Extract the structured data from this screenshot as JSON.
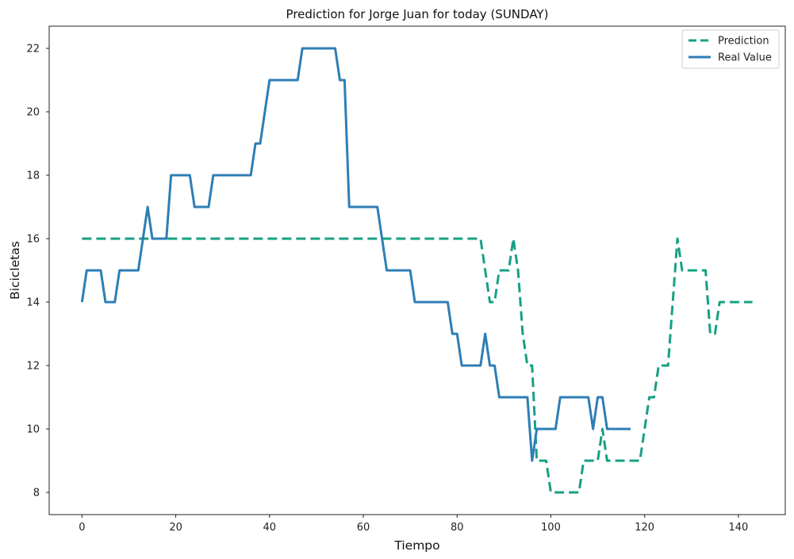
{
  "chart_data": {
    "type": "line",
    "title": "Prediction for Jorge Juan for today (SUNDAY)",
    "xlabel": "Tiempo",
    "ylabel": "Bicicletas",
    "xlim": [
      -7,
      150
    ],
    "ylim": [
      7.3,
      22.7
    ],
    "xticks": [
      0,
      20,
      40,
      60,
      80,
      100,
      120,
      140
    ],
    "yticks": [
      8,
      10,
      12,
      14,
      16,
      18,
      20,
      22
    ],
    "grid": false,
    "legend_position": "top-right",
    "series": [
      {
        "name": "Prediction",
        "color": "#16a085",
        "style": "dashed",
        "points": [
          [
            0,
            16
          ],
          [
            85,
            16
          ],
          [
            87,
            14
          ],
          [
            88,
            14
          ],
          [
            89,
            15
          ],
          [
            91,
            15
          ],
          [
            92,
            16
          ],
          [
            93,
            15
          ],
          [
            94,
            13
          ],
          [
            95,
            12
          ],
          [
            96,
            12
          ],
          [
            97,
            9
          ],
          [
            98,
            9
          ],
          [
            99,
            9
          ],
          [
            100,
            8
          ],
          [
            106,
            8
          ],
          [
            107,
            9
          ],
          [
            109,
            9
          ],
          [
            110,
            9
          ],
          [
            111,
            10
          ],
          [
            112,
            9
          ],
          [
            119,
            9
          ],
          [
            121,
            11
          ],
          [
            122,
            11
          ],
          [
            123,
            12
          ],
          [
            125,
            12
          ],
          [
            127,
            16
          ],
          [
            128,
            15
          ],
          [
            133,
            15
          ],
          [
            134,
            13
          ],
          [
            135,
            13
          ],
          [
            136,
            14
          ],
          [
            143,
            14
          ]
        ]
      },
      {
        "name": "Real Value",
        "color": "#2e7eb5",
        "style": "solid",
        "points": [
          [
            0,
            14
          ],
          [
            1,
            15
          ],
          [
            4,
            15
          ],
          [
            5,
            14
          ],
          [
            7,
            14
          ],
          [
            8,
            15
          ],
          [
            12,
            15
          ],
          [
            14,
            17
          ],
          [
            15,
            16
          ],
          [
            18,
            16
          ],
          [
            19,
            18
          ],
          [
            23,
            18
          ],
          [
            24,
            17
          ],
          [
            27,
            17
          ],
          [
            28,
            18
          ],
          [
            36,
            18
          ],
          [
            37,
            19
          ],
          [
            38,
            19
          ],
          [
            40,
            21
          ],
          [
            46,
            21
          ],
          [
            47,
            22
          ],
          [
            54,
            22
          ],
          [
            55,
            21
          ],
          [
            56,
            21
          ],
          [
            57,
            17
          ],
          [
            63,
            17
          ],
          [
            65,
            15
          ],
          [
            70,
            15
          ],
          [
            71,
            14
          ],
          [
            78,
            14
          ],
          [
            79,
            13
          ],
          [
            80,
            13
          ],
          [
            81,
            12
          ],
          [
            85,
            12
          ],
          [
            86,
            13
          ],
          [
            87,
            12
          ],
          [
            88,
            12
          ],
          [
            89,
            11
          ],
          [
            95,
            11
          ],
          [
            96,
            9
          ],
          [
            97,
            10
          ],
          [
            101,
            10
          ],
          [
            102,
            11
          ],
          [
            108,
            11
          ],
          [
            109,
            10
          ],
          [
            110,
            11
          ],
          [
            111,
            11
          ],
          [
            112,
            10
          ],
          [
            117,
            10
          ]
        ]
      }
    ]
  }
}
